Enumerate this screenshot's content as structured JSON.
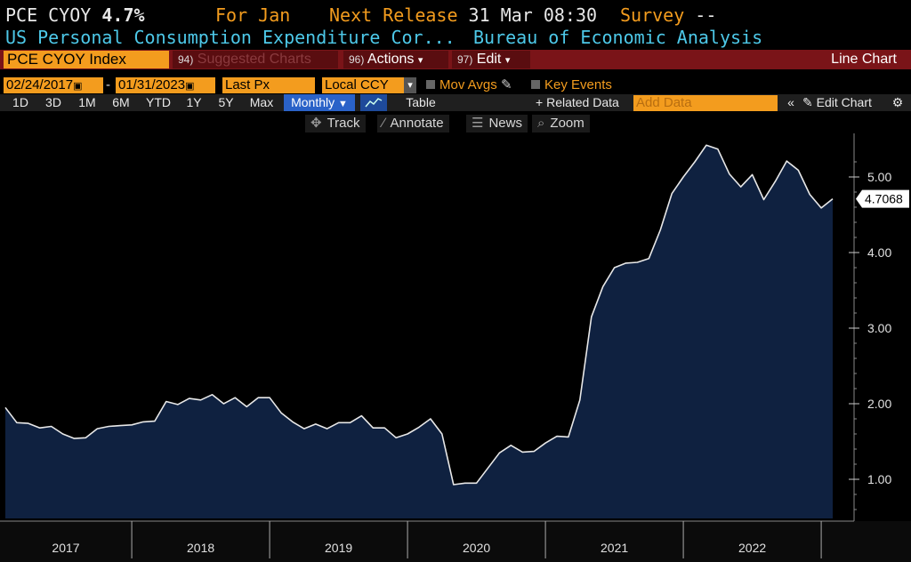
{
  "header": {
    "ticker": "PCE CYOY",
    "value": "4.7%",
    "for_label": "For Jan",
    "next_release_label": "Next Release",
    "next_release_value": "31 Mar 08:30",
    "survey_label": "Survey",
    "survey_value": "--",
    "description": "US Personal Consumption Expenditure Cor...",
    "source": "Bureau of Economic Analysis"
  },
  "toolbar": {
    "security": "PCE CYOY Index",
    "suggested_num": "94)",
    "suggested_label": "Suggested Charts",
    "actions_num": "96)",
    "actions_label": "Actions",
    "edit_num": "97)",
    "edit_label": "Edit",
    "chart_type": "Line Chart",
    "start_date": "02/24/2017",
    "end_date": "01/31/2023",
    "date_sep": "-",
    "field": "Last Px",
    "currency": "Local CCY",
    "mov_avgs": "Mov Avgs",
    "key_events": "Key Events",
    "periods": [
      "1D",
      "3D",
      "1M",
      "6M",
      "YTD",
      "1Y",
      "5Y",
      "Max"
    ],
    "frequency": "Monthly",
    "table_label": "Table",
    "related_data": "Related Data",
    "add_data_placeholder": "Add Data",
    "edit_chart": "Edit Chart",
    "track": "Track",
    "annotate": "Annotate",
    "news": "News",
    "zoom": "Zoom"
  },
  "colors": {
    "orange": "#f39c1e",
    "cyan": "#4dc8e8",
    "area_fill": "#0f2140",
    "line": "#e8e8e8",
    "toolbar_red": "#7a1418"
  },
  "chart_data": {
    "type": "area",
    "title": "PCE CYOY Index",
    "ylim": [
      0.5,
      5.5
    ],
    "yticks": [
      1.0,
      2.0,
      3.0,
      4.0,
      5.0
    ],
    "ytick_labels": [
      "1.00",
      "2.00",
      "3.00",
      "4.00",
      "5.00"
    ],
    "xlabels": [
      "2017",
      "2018",
      "2019",
      "2020",
      "2021",
      "2022"
    ],
    "last_value_label": "4.7068",
    "x_start": "2017-02",
    "values": [
      1.95,
      1.75,
      1.74,
      1.68,
      1.7,
      1.6,
      1.54,
      1.55,
      1.67,
      1.7,
      1.71,
      1.72,
      1.76,
      1.77,
      2.03,
      1.99,
      2.07,
      2.05,
      2.12,
      2.0,
      2.08,
      1.96,
      2.08,
      2.08,
      1.88,
      1.76,
      1.67,
      1.73,
      1.67,
      1.75,
      1.75,
      1.84,
      1.68,
      1.68,
      1.55,
      1.6,
      1.69,
      1.8,
      1.6,
      0.93,
      0.95,
      0.95,
      1.15,
      1.35,
      1.45,
      1.36,
      1.37,
      1.48,
      1.57,
      1.56,
      2.05,
      3.15,
      3.55,
      3.8,
      3.86,
      3.87,
      3.92,
      4.3,
      4.78,
      5.0,
      5.2,
      5.42,
      5.37,
      5.04,
      4.87,
      5.03,
      4.7,
      4.94,
      5.21,
      5.09,
      4.77,
      4.59,
      4.71
    ]
  }
}
